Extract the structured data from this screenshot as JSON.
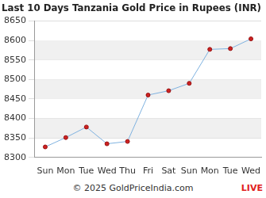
{
  "chart_data": {
    "type": "line",
    "title": "Last 10 Days Tanzania Gold Price in Rupees (INR)",
    "categories": [
      "Sun",
      "Mon",
      "Tue",
      "Wed",
      "Thu",
      "Fri",
      "Sat",
      "Sun",
      "Mon",
      "Tue",
      "Wed"
    ],
    "values": [
      8327,
      8351,
      8378,
      8335,
      8341,
      8460,
      8471,
      8490,
      8577,
      8579,
      8604
    ],
    "color": "#7fb2e0",
    "marker": "circle",
    "ylim": [
      8300,
      8650
    ],
    "yticks": [
      8300,
      8350,
      8400,
      8450,
      8500,
      8550,
      8600,
      8650
    ],
    "grid": true,
    "annotations": [
      "© 2025 GoldPriceIndia.com",
      "LIVE"
    ]
  }
}
